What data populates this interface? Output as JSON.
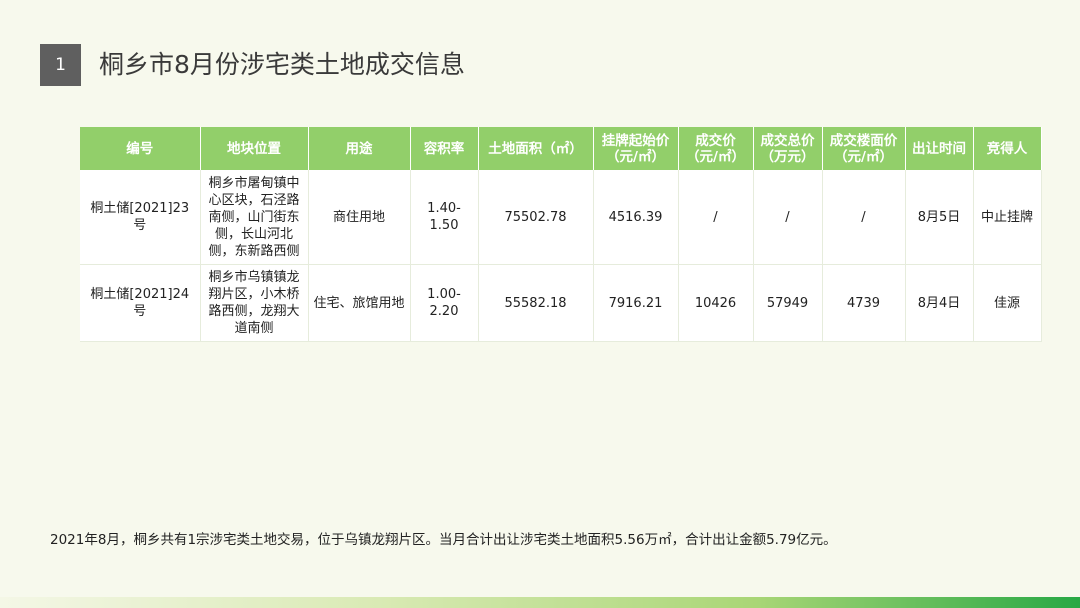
{
  "section_number": "1",
  "title": "桐乡市8月份涉宅类土地成交信息",
  "table": {
    "headers": [
      "编号",
      "地块位置",
      "用途",
      "容积率",
      "土地面积（㎡）",
      "挂牌起始价（元/㎡）",
      "成交价（元/㎡）",
      "成交总价（万元）",
      "成交楼面价（元/㎡）",
      "出让时间",
      "竞得人"
    ],
    "rows": [
      [
        "桐土储[2021]23号",
        "桐乡市屠甸镇中心区块，石泾路南侧，山门街东侧，长山河北侧，东新路西侧",
        "商住用地",
        "1.40-1.50",
        "75502.78",
        "4516.39",
        "/",
        "/",
        "/",
        "8月5日",
        "中止挂牌"
      ],
      [
        "桐土储[2021]24号",
        "桐乡市乌镇镇龙翔片区，小木桥路西侧，龙翔大道南侧",
        "住宅、旅馆用地",
        "1.00-2.20",
        "55582.18",
        "7916.21",
        "10426",
        "57949",
        "4739",
        "8月4日",
        "佳源"
      ]
    ]
  },
  "summary": "2021年8月，桐乡共有1宗涉宅类土地交易，位于乌镇龙翔片区。当月合计出让涉宅类土地面积5.56万㎡，合计出让金额5.79亿元。",
  "colors": {
    "header_green": "#92cf6a",
    "background": "#f7f9ed",
    "accent_green": "#27a844"
  }
}
